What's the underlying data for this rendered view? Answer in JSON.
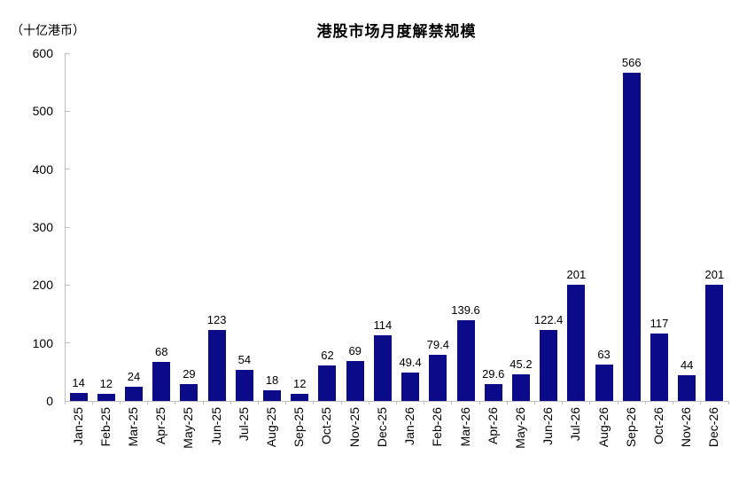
{
  "chart_data": {
    "type": "bar",
    "title": "港股市场月度解禁规模",
    "unit_label": "（十亿港币）",
    "categories": [
      "Jan-25",
      "Feb-25",
      "Mar-25",
      "Apr-25",
      "May-25",
      "Jun-25",
      "Jul-25",
      "Aug-25",
      "Sep-25",
      "Oct-25",
      "Nov-25",
      "Dec-25",
      "Jan-26",
      "Feb-26",
      "Mar-26",
      "Apr-26",
      "May-26",
      "Jun-26",
      "Jul-26",
      "Aug-26",
      "Sep-26",
      "Oct-26",
      "Nov-26",
      "Dec-26"
    ],
    "values": [
      14,
      12,
      24,
      68,
      29,
      123,
      54,
      18,
      12,
      62,
      69,
      114,
      49.4,
      79.4,
      139.6,
      29.6,
      45.2,
      122.4,
      201,
      63,
      566,
      117,
      44,
      201
    ],
    "value_labels": [
      "14",
      "12",
      "24",
      "68",
      "29",
      "123",
      "54",
      "18",
      "12",
      "62",
      "69",
      "114",
      "49.4",
      "79.4",
      "139.6",
      "29.6",
      "45.2",
      "122.4",
      "201",
      "63",
      "566",
      "117",
      "44",
      "201"
    ],
    "xlabel": "",
    "ylabel": "（十亿港币）",
    "ylim": [
      0,
      600
    ],
    "y_ticks": [
      0,
      100,
      200,
      300,
      400,
      500,
      600
    ],
    "grid": "off",
    "legend": "none",
    "bar_color": "#0b0b8a",
    "axis_color": "#bfbfbf",
    "text_color": "#000000"
  }
}
